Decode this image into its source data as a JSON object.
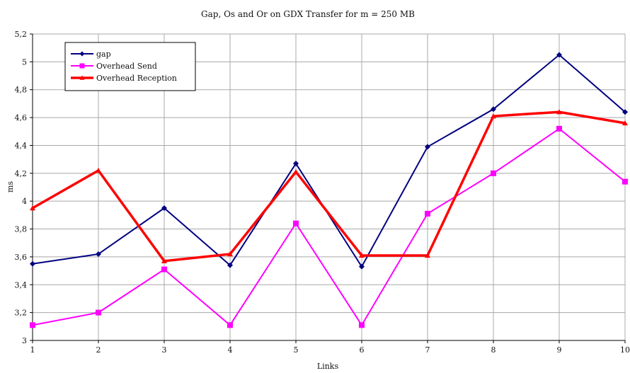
{
  "chart_data": {
    "type": "line",
    "title": "Gap, Os and Or on GDX Transfer for m = 250 MB",
    "xlabel": "Links",
    "ylabel": "ms",
    "x": [
      1,
      2,
      3,
      4,
      5,
      6,
      7,
      8,
      9,
      10
    ],
    "x_tick_labels": [
      "1",
      "2",
      "3",
      "4",
      "5",
      "6",
      "7",
      "8",
      "9",
      "10"
    ],
    "ylim": [
      3,
      5.2
    ],
    "y_ticks": [
      3,
      3.2,
      3.4,
      3.6,
      3.8,
      4,
      4.2,
      4.4,
      4.6,
      4.8,
      5,
      5.2
    ],
    "y_tick_labels": [
      "3",
      "3,2",
      "3,4",
      "3,6",
      "3,8",
      "4",
      "4,2",
      "4,4",
      "4,6",
      "4,8",
      "5",
      "5,2"
    ],
    "grid": "vertical and horizontal",
    "legend_position": "top-left",
    "series": [
      {
        "name": "gap",
        "color": "#000080",
        "marker": "diamond",
        "values": [
          3.55,
          3.62,
          3.95,
          3.54,
          4.27,
          3.53,
          4.39,
          4.66,
          5.05,
          4.64
        ]
      },
      {
        "name": "Overhead Send",
        "color": "#ff00ff",
        "marker": "square",
        "values": [
          3.11,
          3.2,
          3.51,
          3.11,
          3.84,
          3.11,
          3.91,
          4.2,
          4.52,
          4.14
        ]
      },
      {
        "name": "Overhead Reception",
        "color": "#ff0000",
        "marker": "triangle",
        "values": [
          3.95,
          4.22,
          3.57,
          3.62,
          4.21,
          3.61,
          3.61,
          4.61,
          4.64,
          4.56
        ]
      }
    ]
  }
}
